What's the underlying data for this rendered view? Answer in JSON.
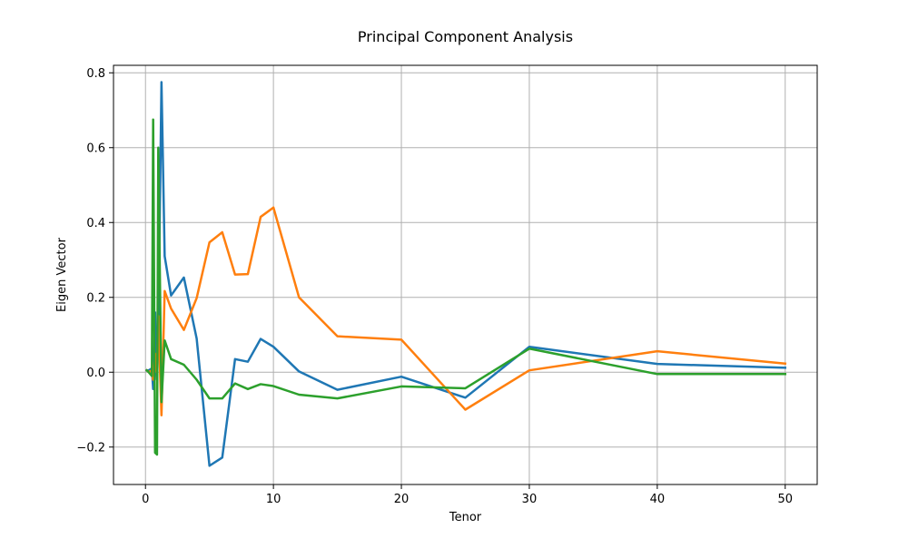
{
  "chart_data": {
    "type": "line",
    "title": "Principal Component Analysis",
    "xlabel": "Tenor",
    "ylabel": "Eigen Vector",
    "xlim": [
      -2.5,
      52.5
    ],
    "ylim": [
      -0.3,
      0.82
    ],
    "xticks": [
      0,
      10,
      20,
      30,
      40,
      50
    ],
    "yticks": [
      -0.2,
      0.0,
      0.2,
      0.4,
      0.6,
      0.8
    ],
    "xtick_labels": [
      "0",
      "10",
      "20",
      "30",
      "40",
      "50"
    ],
    "ytick_labels": [
      "−0.2",
      "0.0",
      "0.2",
      "0.4",
      "0.6",
      "0.8"
    ],
    "grid": true,
    "series": [
      {
        "color": "#1f77b4",
        "points": [
          [
            0.1,
            0.005
          ],
          [
            0.25,
            0.005
          ],
          [
            0.5,
            0.01
          ],
          [
            0.6,
            -0.045
          ],
          [
            0.75,
            0.16
          ],
          [
            0.9,
            -0.02
          ],
          [
            1.0,
            0.1
          ],
          [
            1.25,
            0.775
          ],
          [
            1.5,
            0.31
          ],
          [
            2,
            0.205
          ],
          [
            3,
            0.253
          ],
          [
            4,
            0.09
          ],
          [
            5,
            -0.25
          ],
          [
            6,
            -0.228
          ],
          [
            7,
            0.035
          ],
          [
            8,
            0.028
          ],
          [
            9,
            0.089
          ],
          [
            10,
            0.068
          ],
          [
            12,
            0.002
          ],
          [
            15,
            -0.047
          ],
          [
            20,
            -0.012
          ],
          [
            25,
            -0.068
          ],
          [
            30,
            0.068
          ],
          [
            40,
            0.022
          ],
          [
            50,
            0.012
          ]
        ]
      },
      {
        "color": "#ff7f0e",
        "points": [
          [
            0.1,
            0.005
          ],
          [
            0.25,
            0.0
          ],
          [
            0.5,
            0.005
          ],
          [
            0.6,
            -0.02
          ],
          [
            0.75,
            0.05
          ],
          [
            0.9,
            0.0
          ],
          [
            1.0,
            0.15
          ],
          [
            1.25,
            -0.115
          ],
          [
            1.5,
            0.217
          ],
          [
            2,
            0.17
          ],
          [
            3,
            0.113
          ],
          [
            4,
            0.198
          ],
          [
            5,
            0.347
          ],
          [
            6,
            0.374
          ],
          [
            7,
            0.261
          ],
          [
            8,
            0.262
          ],
          [
            9,
            0.415
          ],
          [
            10,
            0.44
          ],
          [
            12,
            0.2
          ],
          [
            15,
            0.096
          ],
          [
            20,
            0.087
          ],
          [
            25,
            -0.1
          ],
          [
            30,
            0.005
          ],
          [
            40,
            0.056
          ],
          [
            50,
            0.023
          ]
        ]
      },
      {
        "color": "#2ca02c",
        "points": [
          [
            0.1,
            0.005
          ],
          [
            0.25,
            0.0
          ],
          [
            0.5,
            -0.01
          ],
          [
            0.6,
            0.675
          ],
          [
            0.75,
            -0.215
          ],
          [
            0.9,
            -0.22
          ],
          [
            1.0,
            0.6
          ],
          [
            1.25,
            -0.08
          ],
          [
            1.5,
            0.085
          ],
          [
            2,
            0.035
          ],
          [
            3,
            0.02
          ],
          [
            4,
            -0.02
          ],
          [
            5,
            -0.07
          ],
          [
            6,
            -0.07
          ],
          [
            7,
            -0.03
          ],
          [
            8,
            -0.045
          ],
          [
            9,
            -0.032
          ],
          [
            10,
            -0.037
          ],
          [
            12,
            -0.06
          ],
          [
            15,
            -0.07
          ],
          [
            20,
            -0.038
          ],
          [
            25,
            -0.043
          ],
          [
            30,
            0.063
          ],
          [
            40,
            -0.005
          ],
          [
            50,
            -0.005
          ]
        ]
      }
    ]
  }
}
